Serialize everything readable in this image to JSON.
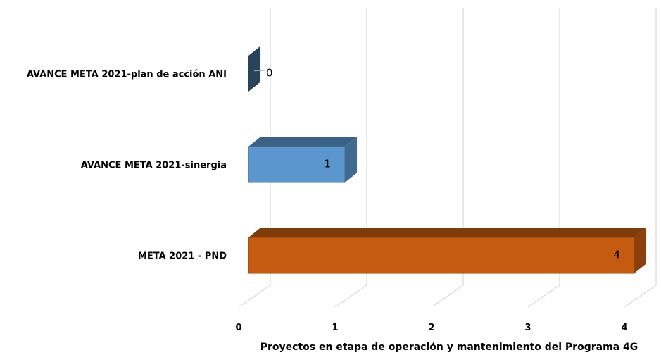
{
  "chart_data": {
    "type": "bar",
    "orientation": "horizontal",
    "style": "3d",
    "categories": [
      "AVANCE META 2021-plan de acción ANI",
      "AVANCE META 2021-sinergia",
      "META 2021 - PND"
    ],
    "values": [
      0,
      1,
      4
    ],
    "data_labels": [
      "0",
      "1",
      "4"
    ],
    "colors": [
      "#3A5F82",
      "#5B97CE",
      "#C55A11"
    ],
    "xlabel": "Proyectos en etapa de operación y mantenimiento del Programa 4G",
    "ylabel": "",
    "xlim": [
      0,
      4
    ],
    "xticks": [
      "0",
      "1",
      "2",
      "3",
      "4"
    ],
    "grid": true,
    "legend": "none"
  }
}
